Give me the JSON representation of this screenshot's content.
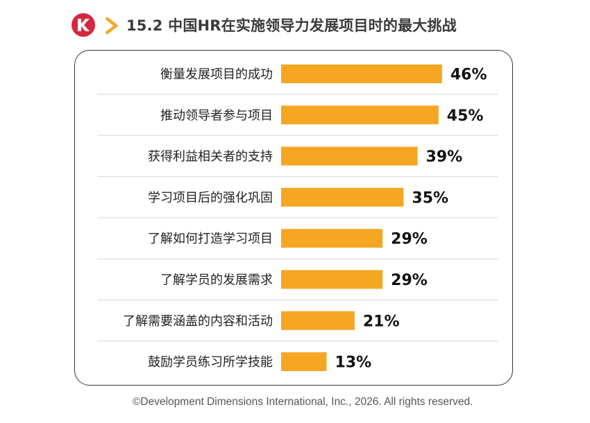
{
  "header": {
    "title": "15.2 中国HR在实施领导力发展项目时的最大挑战",
    "logo_icon": "ddi-logo-icon",
    "chevron_icon": "chevron-right-icon",
    "accent_color": "#f5a623",
    "logo_color": "#d7263d"
  },
  "chart_data": {
    "type": "bar",
    "orientation": "horizontal",
    "categories": [
      "衡量发展项目的成功",
      "推动领导者参与项目",
      "获得利益相关者的支持",
      "学习项目后的强化巩固",
      "了解如何打造学习项目",
      "了解学员的发展需求",
      "了解需要涵盖的内容和活动",
      "鼓励学员练习所学技能"
    ],
    "values": [
      46,
      45,
      39,
      35,
      29,
      29,
      21,
      13
    ],
    "value_labels": [
      "46%",
      "45%",
      "39%",
      "35%",
      "29%",
      "29%",
      "21%",
      "13%"
    ],
    "bar_color": "#f5a623",
    "grid": false,
    "legend": "none"
  },
  "footer": {
    "copyright": "©Development Dimensions International, Inc., 2026. All rights reserved."
  }
}
